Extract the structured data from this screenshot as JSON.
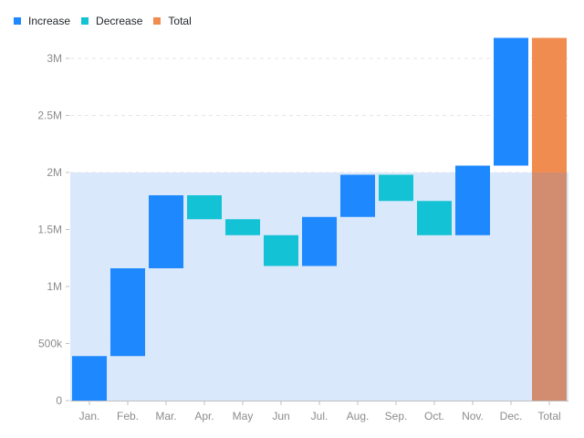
{
  "legend": {
    "increase_label": "Increase",
    "decrease_label": "Decrease",
    "total_label": "Total"
  },
  "colors": {
    "increase": "#1e88ff",
    "decrease": "#13c2d4",
    "total": "#f08c50",
    "highlight": "#d6e6fb",
    "grid": "#e6e6e6",
    "axis": "#bfbfbf"
  },
  "chart_data": {
    "type": "bar",
    "subtype": "waterfall",
    "categories": [
      "Jan.",
      "Feb.",
      "Mar.",
      "Apr.",
      "May",
      "Jun",
      "Jul.",
      "Aug.",
      "Sep.",
      "Oct.",
      "Nov.",
      "Dec.",
      "Total"
    ],
    "bars": [
      {
        "start": 0,
        "end": 390000,
        "kind": "increase"
      },
      {
        "start": 390000,
        "end": 1160000,
        "kind": "increase"
      },
      {
        "start": 1160000,
        "end": 1800000,
        "kind": "increase"
      },
      {
        "start": 1800000,
        "end": 1590000,
        "kind": "decrease"
      },
      {
        "start": 1590000,
        "end": 1450000,
        "kind": "decrease"
      },
      {
        "start": 1450000,
        "end": 1180000,
        "kind": "decrease"
      },
      {
        "start": 1180000,
        "end": 1610000,
        "kind": "increase"
      },
      {
        "start": 1610000,
        "end": 1980000,
        "kind": "increase"
      },
      {
        "start": 1980000,
        "end": 1750000,
        "kind": "decrease"
      },
      {
        "start": 1750000,
        "end": 1450000,
        "kind": "decrease"
      },
      {
        "start": 1450000,
        "end": 2060000,
        "kind": "increase"
      },
      {
        "start": 2060000,
        "end": 3180000,
        "kind": "increase"
      },
      {
        "start": 0,
        "end": 3180000,
        "kind": "total"
      }
    ],
    "y_ticks": [
      {
        "value": 0,
        "label": "0"
      },
      {
        "value": 500000,
        "label": "500k"
      },
      {
        "value": 1000000,
        "label": "1M"
      },
      {
        "value": 1500000,
        "label": "1.5M"
      },
      {
        "value": 2000000,
        "label": "2M"
      },
      {
        "value": 2500000,
        "label": "2.5M"
      },
      {
        "value": 3000000,
        "label": "3M"
      }
    ],
    "ylim": [
      0,
      3000000
    ],
    "highlight_region": {
      "y_from": 0,
      "y_to": 2000000
    },
    "grid": true,
    "legend_position": "top-left"
  }
}
